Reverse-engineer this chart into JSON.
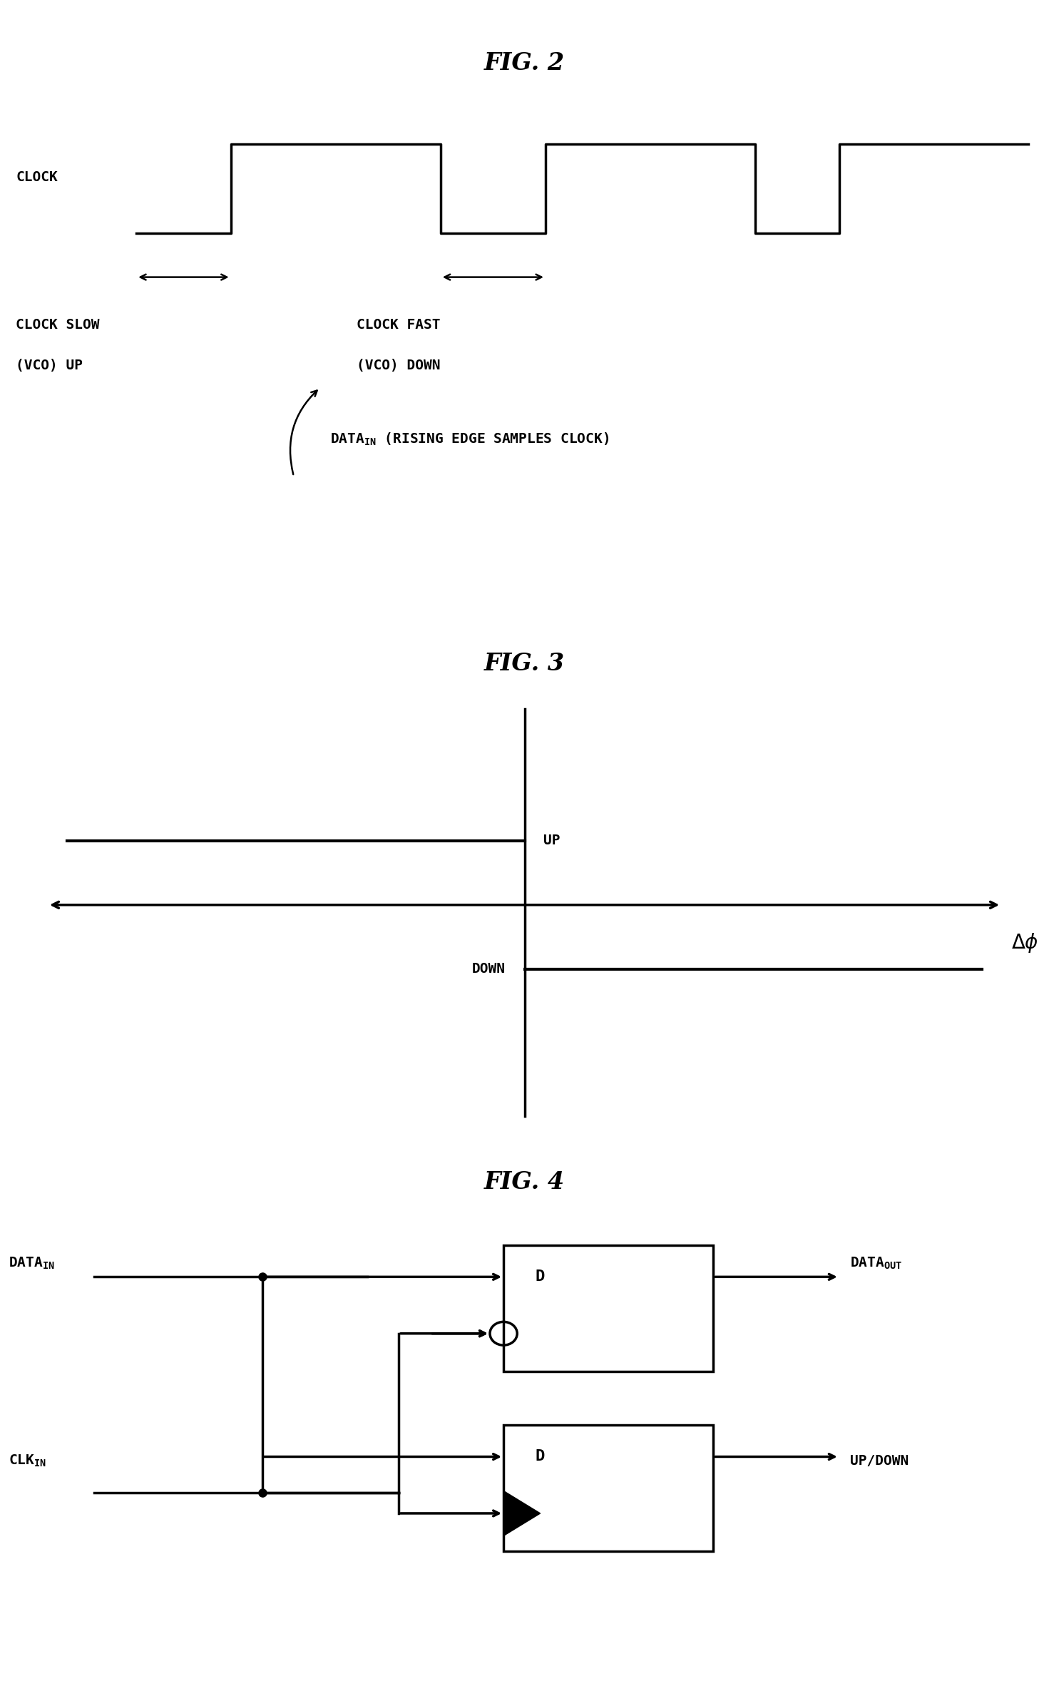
{
  "background_color": "#ffffff",
  "line_color": "#000000",
  "title_fontsize": 24,
  "label_fontsize": 14,
  "fig2_title": "FIG. 2",
  "fig3_title": "FIG. 3",
  "fig4_title": "FIG. 4"
}
